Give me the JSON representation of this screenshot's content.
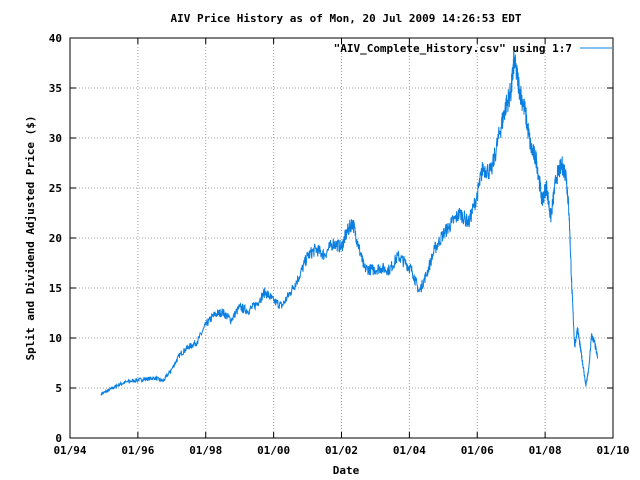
{
  "chart_data": {
    "type": "line",
    "title": "AIV Price History as of Mon, 20 Jul 2009 14:26:53 EDT",
    "xlabel": "Date",
    "ylabel": "Split and Dividend Adjusted Price ($)",
    "xlim": [
      "1994-01-01",
      "2010-01-01"
    ],
    "ylim": [
      0,
      40
    ],
    "grid": true,
    "legend_position": "top-right",
    "xticks": [
      "01/94",
      "01/96",
      "01/98",
      "01/00",
      "01/02",
      "01/04",
      "01/06",
      "01/08",
      "01/10"
    ],
    "yticks": [
      "0",
      "5",
      "10",
      "15",
      "20",
      "25",
      "30",
      "35",
      "40"
    ],
    "line_color": "#0a7fe0",
    "series": [
      {
        "name": "\"AIV_Complete_History.csv\" using 1:7",
        "x": [
          "1994-12-01",
          "1995-03-01",
          "1995-06-01",
          "1995-09-01",
          "1996-01-01",
          "1996-04-01",
          "1996-07-01",
          "1996-10-01",
          "1997-01-01",
          "1997-04-01",
          "1997-07-01",
          "1997-10-01",
          "1998-01-01",
          "1998-04-01",
          "1998-07-01",
          "1998-10-01",
          "1999-01-01",
          "1999-04-01",
          "1999-07-01",
          "1999-10-01",
          "2000-01-01",
          "2000-04-01",
          "2000-07-01",
          "2000-10-01",
          "2001-01-01",
          "2001-04-01",
          "2001-07-01",
          "2001-10-01",
          "2002-01-01",
          "2002-03-01",
          "2002-05-01",
          "2002-07-01",
          "2002-09-01",
          "2002-12-01",
          "2003-03-01",
          "2003-06-01",
          "2003-09-01",
          "2003-12-01",
          "2004-02-01",
          "2004-04-15",
          "2004-07-01",
          "2004-10-01",
          "2005-01-01",
          "2005-04-01",
          "2005-07-01",
          "2005-10-01",
          "2006-01-01",
          "2006-03-01",
          "2006-06-01",
          "2006-09-01",
          "2006-11-01",
          "2007-01-01",
          "2007-02-01",
          "2007-04-01",
          "2007-06-01",
          "2007-08-01",
          "2007-10-01",
          "2007-12-01",
          "2008-01-15",
          "2008-03-01",
          "2008-05-01",
          "2008-07-01",
          "2008-08-15",
          "2008-09-15",
          "2008-10-15",
          "2008-11-15",
          "2008-12-15",
          "2009-01-15",
          "2009-02-15",
          "2009-03-15",
          "2009-04-15",
          "2009-05-15",
          "2009-06-15",
          "2009-07-20"
        ],
        "y": [
          4.4,
          4.8,
          5.3,
          5.6,
          5.8,
          5.9,
          6.0,
          5.7,
          6.9,
          8.4,
          9.1,
          9.6,
          11.3,
          12.3,
          12.6,
          11.8,
          13.1,
          12.7,
          13.4,
          14.6,
          13.7,
          13.2,
          14.6,
          16.1,
          18.2,
          18.9,
          18.3,
          19.5,
          19.1,
          20.6,
          21.6,
          19.3,
          17.0,
          16.8,
          17.0,
          16.8,
          18.2,
          17.4,
          16.7,
          14.6,
          16.3,
          18.9,
          20.4,
          21.5,
          22.5,
          21.5,
          24.3,
          27.0,
          26.6,
          30.6,
          33.1,
          34.7,
          37.8,
          34.9,
          32.6,
          29.0,
          27.8,
          23.6,
          25.3,
          22.0,
          26.1,
          27.3,
          26.3,
          22.5,
          15.0,
          9.1,
          11.0,
          9.0,
          7.1,
          5.2,
          6.9,
          10.2,
          9.6,
          8.0
        ]
      }
    ]
  }
}
